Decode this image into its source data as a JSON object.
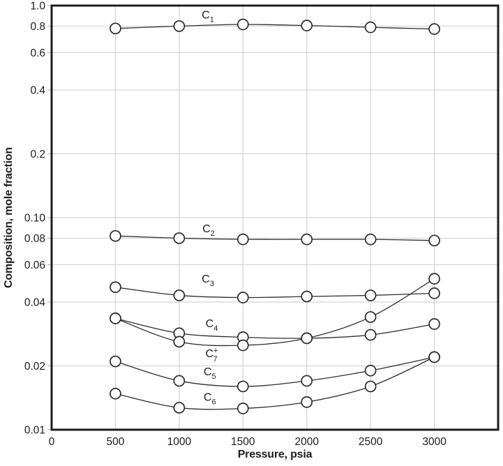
{
  "figure": {
    "colors": {
      "background": "#ffffff",
      "border": "#1c1c1c",
      "grid": "#d3d3d3",
      "tick_stub": "#bcbcbc",
      "line": "#2d2d2d",
      "marker_fill": "#ffffff",
      "marker_stroke": "#2a2a2a",
      "text": "#1c1c1c"
    }
  },
  "chart_data": {
    "type": "line",
    "title": "",
    "xlabel": "Pressure, psia",
    "ylabel": "Composition, mole fraction",
    "x_axis": {
      "scale": "linear",
      "min": 0,
      "max": 3500,
      "ticks": [
        {
          "v": 0,
          "label": "0"
        },
        {
          "v": 500,
          "label": "500"
        },
        {
          "v": 1000,
          "label": "1000"
        },
        {
          "v": 1500,
          "label": "1500"
        },
        {
          "v": 2000,
          "label": "2000"
        },
        {
          "v": 2500,
          "label": "2500"
        },
        {
          "v": 3000,
          "label": "3000"
        }
      ]
    },
    "y_axis": {
      "scale": "log",
      "min": 0.01,
      "max": 1.0,
      "ticks": [
        {
          "v": 1.0,
          "label": "1.0"
        },
        {
          "v": 0.8,
          "label": "0.8"
        },
        {
          "v": 0.6,
          "label": "0.6"
        },
        {
          "v": 0.4,
          "label": "0.4"
        },
        {
          "v": 0.2,
          "label": "0.2"
        },
        {
          "v": 0.1,
          "label": "0.10"
        },
        {
          "v": 0.08,
          "label": "0.08"
        },
        {
          "v": 0.06,
          "label": "0.06"
        },
        {
          "v": 0.04,
          "label": "0.04"
        },
        {
          "v": 0.02,
          "label": "0.02"
        },
        {
          "v": 0.01,
          "label": "0.01"
        }
      ]
    },
    "grid": {
      "on": true,
      "x_values": [
        500,
        1000,
        1500,
        2000,
        2500,
        3000
      ],
      "y_values": [
        0.8,
        0.6,
        0.4,
        0.2,
        0.1,
        0.08,
        0.06,
        0.04,
        0.02
      ]
    },
    "legend_position": "inline-labels",
    "marker": {
      "shape": "circle",
      "radius": 7.5
    },
    "x": [
      500,
      1000,
      1500,
      2000,
      2500,
      3000
    ],
    "series": [
      {
        "id": "C1",
        "label": {
          "base": "C",
          "sub": "1",
          "sup": ""
        },
        "values": [
          0.78,
          0.8,
          0.815,
          0.805,
          0.79,
          0.775
        ],
        "label_anchor": {
          "p": 1225,
          "v": 0.905
        }
      },
      {
        "id": "C2",
        "label": {
          "base": "C",
          "sub": "2",
          "sup": ""
        },
        "values": [
          0.082,
          0.08,
          0.079,
          0.079,
          0.079,
          0.078
        ],
        "label_anchor": {
          "p": 1230,
          "v": 0.089
        }
      },
      {
        "id": "C3",
        "label": {
          "base": "C",
          "sub": "3",
          "sup": ""
        },
        "values": [
          0.047,
          0.043,
          0.042,
          0.0425,
          0.043,
          0.044
        ],
        "label_anchor": {
          "p": 1225,
          "v": 0.0515
        }
      },
      {
        "id": "C4",
        "label": {
          "base": "C",
          "sub": "4",
          "sup": ""
        },
        "values": [
          0.0335,
          0.0285,
          0.0273,
          0.027,
          0.028,
          0.0315
        ],
        "label_anchor": {
          "p": 1255,
          "v": 0.0318
        }
      },
      {
        "id": "C7+",
        "label": {
          "base": "C",
          "sub": "7",
          "sup": "+"
        },
        "values": [
          0.0335,
          0.026,
          0.025,
          0.027,
          0.034,
          0.0515
        ],
        "label_anchor": {
          "p": 1255,
          "v": 0.0229
        }
      },
      {
        "id": "C5",
        "label": {
          "base": "C",
          "sub": "5",
          "sup": ""
        },
        "values": [
          0.021,
          0.017,
          0.016,
          0.017,
          0.019,
          0.022
        ],
        "label_anchor": {
          "p": 1240,
          "v": 0.0188
        }
      },
      {
        "id": "C6",
        "label": {
          "base": "C",
          "sub": "6",
          "sup": ""
        },
        "values": [
          0.0148,
          0.0127,
          0.0126,
          0.0135,
          0.016,
          0.022
        ],
        "label_anchor": {
          "p": 1240,
          "v": 0.0143
        }
      }
    ]
  }
}
